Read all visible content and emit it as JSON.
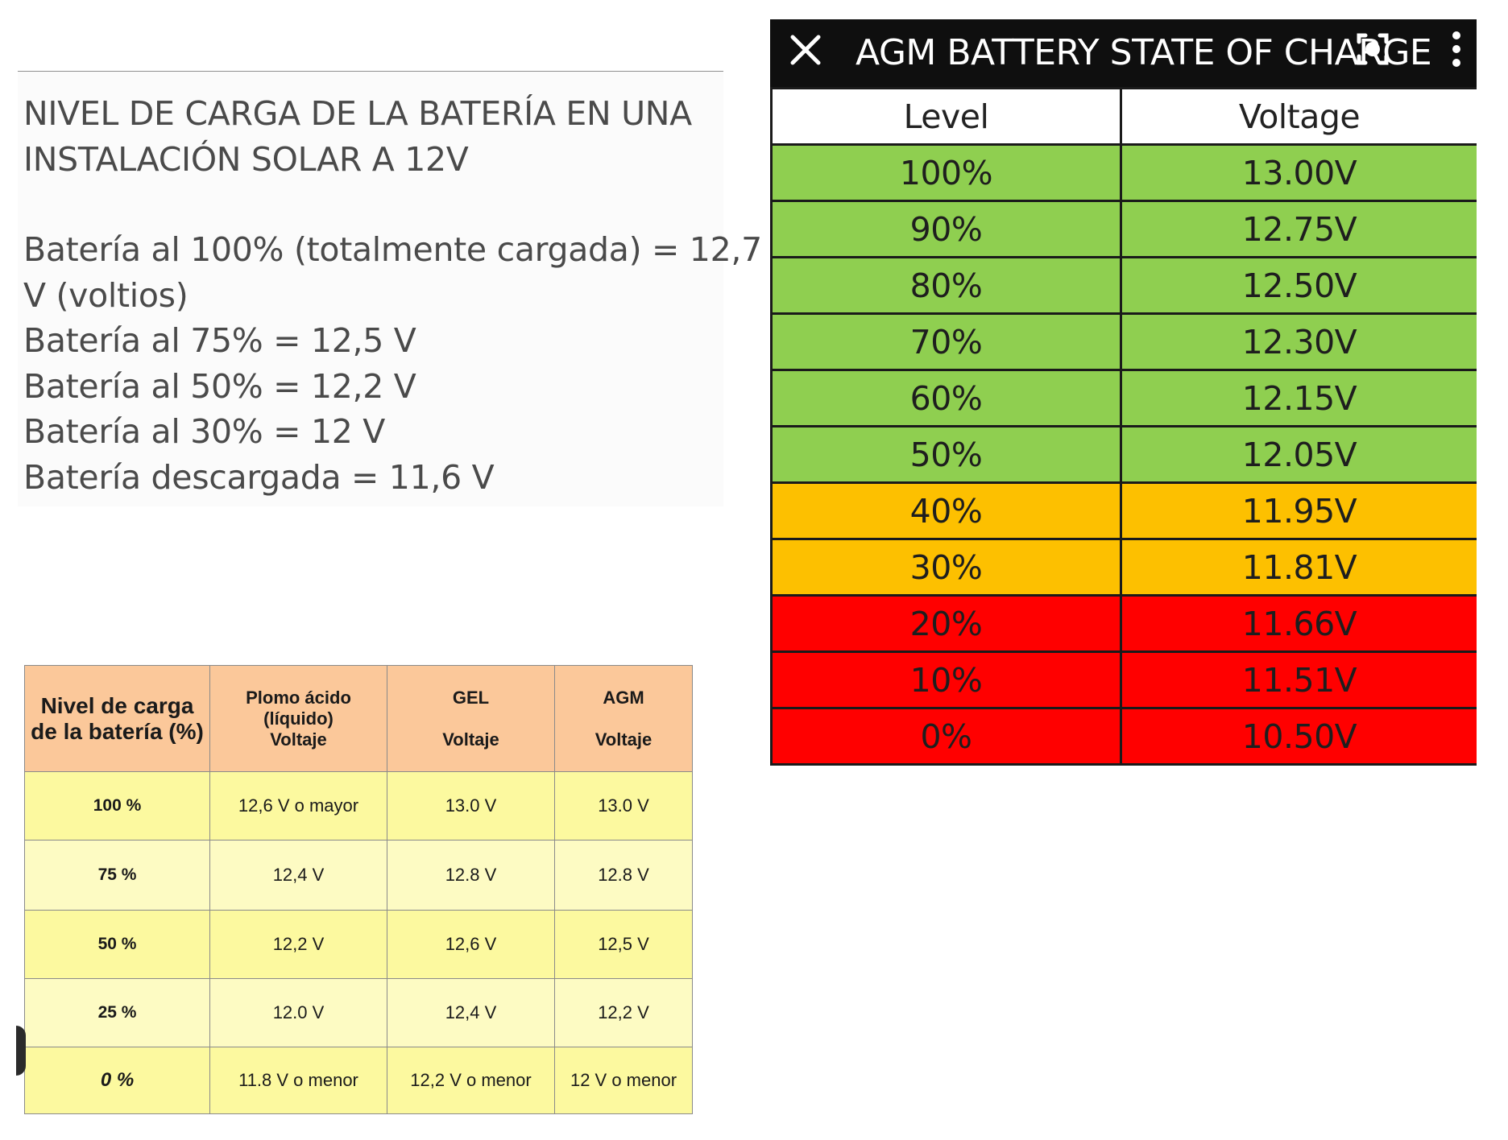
{
  "left_text": {
    "title_lines": [
      "NIVEL DE CARGA DE LA BATERÍA EN UNA",
      "INSTALACIÓN SOLAR A 12V"
    ],
    "body_lines": [
      "Batería al 100% (totalmente cargada) = 12,7",
      "V (voltios)",
      "Batería al 75% = 12,5 V",
      "Batería al 50% = 12,2 V",
      "Batería al 30% = 12 V",
      "Batería descargada = 11,6 V"
    ]
  },
  "agm_viewer": {
    "title": "AGM BATTERY STATE OF CHARGE",
    "icons": {
      "close": "close-icon",
      "lens": "lens-icon",
      "more": "more-vertical-icon"
    },
    "headers": [
      "Level",
      "Voltage"
    ],
    "rows": [
      {
        "level": "100%",
        "voltage": "13.00V",
        "band": "green"
      },
      {
        "level": "90%",
        "voltage": "12.75V",
        "band": "green"
      },
      {
        "level": "80%",
        "voltage": "12.50V",
        "band": "green"
      },
      {
        "level": "70%",
        "voltage": "12.30V",
        "band": "green"
      },
      {
        "level": "60%",
        "voltage": "12.15V",
        "band": "green"
      },
      {
        "level": "50%",
        "voltage": "12.05V",
        "band": "green"
      },
      {
        "level": "40%",
        "voltage": "11.95V",
        "band": "orange"
      },
      {
        "level": "30%",
        "voltage": "11.81V",
        "band": "orange"
      },
      {
        "level": "20%",
        "voltage": "11.66V",
        "band": "red"
      },
      {
        "level": "10%",
        "voltage": "11.51V",
        "band": "red"
      },
      {
        "level": "0%",
        "voltage": "10.50V",
        "band": "red"
      }
    ],
    "colors": {
      "green": "#8fcf50",
      "orange": "#fdc000",
      "red": "#ff0000"
    }
  },
  "comparison_table": {
    "headers": {
      "level": "Nivel de carga de la batería (%)",
      "lead_acid": [
        "Plomo ácido",
        "(líquido)",
        "Voltaje"
      ],
      "gel": [
        "GEL",
        "Voltaje"
      ],
      "agm": [
        "AGM",
        "Voltaje"
      ]
    },
    "rows": [
      {
        "level": "100 %",
        "lead_acid": "12,6 V o mayor",
        "gel": "13.0 V",
        "agm": "13.0 V"
      },
      {
        "level": "75 %",
        "lead_acid": "12,4 V",
        "gel": "12.8 V",
        "agm": "12.8 V"
      },
      {
        "level": "50 %",
        "lead_acid": "12,2 V",
        "gel": "12,6 V",
        "agm": "12,5 V"
      },
      {
        "level": "25 %",
        "lead_acid": "12.0 V",
        "gel": "12,4 V",
        "agm": "12,2 V"
      },
      {
        "level": "0 %",
        "lead_acid": "11.8 V o menor",
        "gel": "12,2 V o menor",
        "agm": "12 V o menor"
      }
    ],
    "colors": {
      "header": "#fbc89a",
      "row_a": "#fcf99f",
      "row_b": "#fdfbc3"
    }
  }
}
